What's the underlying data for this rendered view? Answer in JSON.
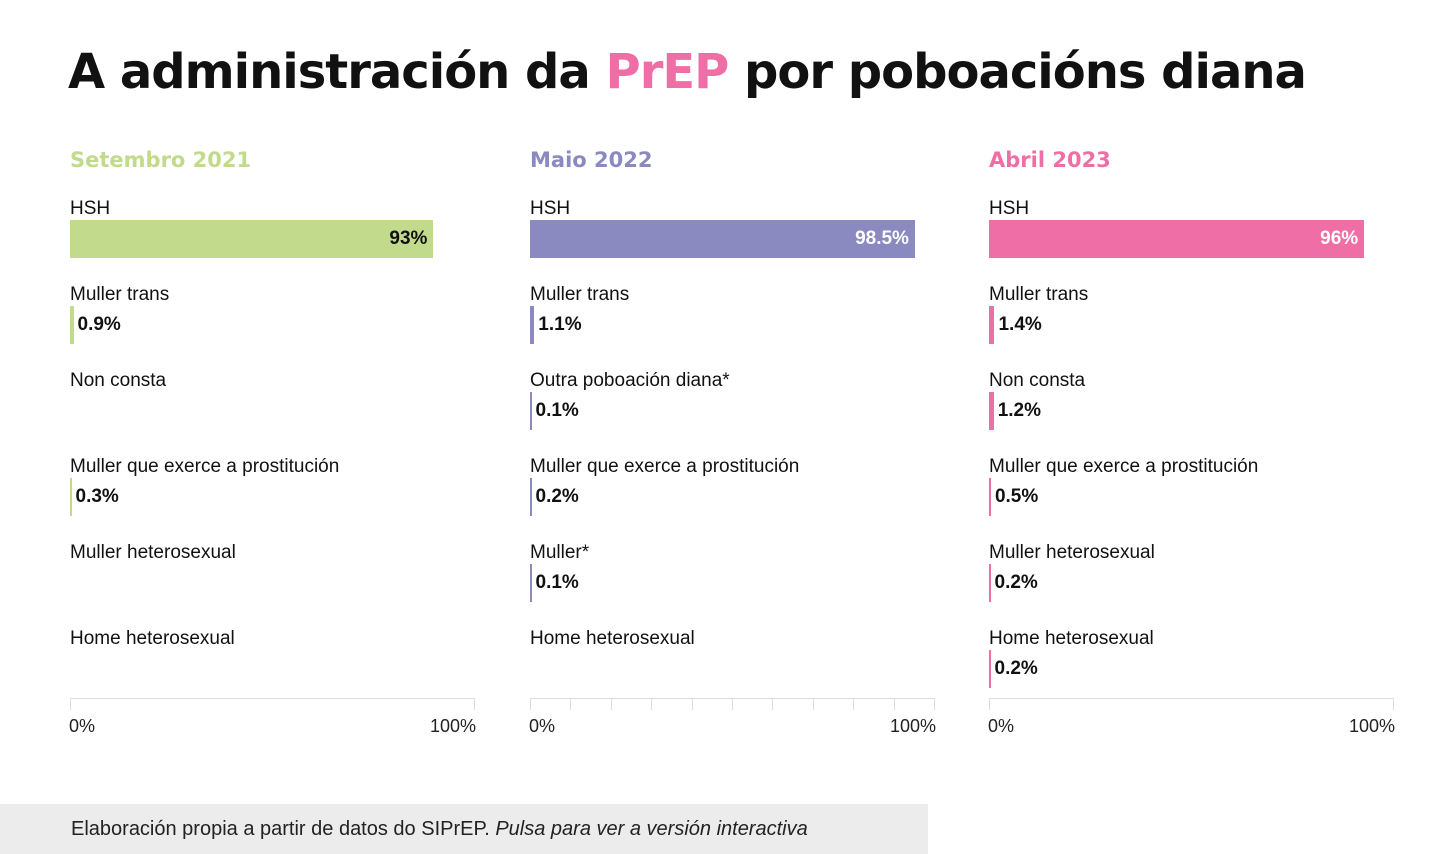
{
  "title": {
    "before": "A administración da ",
    "highlight": "PrEP",
    "after": " por poboacións diana"
  },
  "footer": {
    "source": "Elaboración propia a partir de datos do SIPrEP. ",
    "interactive": "Pulsa para ver a versión interactiva"
  },
  "chart_data": [
    {
      "type": "bar",
      "orientation": "horizontal",
      "title": "Setembro 2021",
      "color": "#c2da8c",
      "categories": [
        "HSH",
        "Muller trans",
        "Non consta",
        "Muller que exerce a prostitución",
        "Muller heterosexual",
        "Home heterosexual"
      ],
      "values": [
        93,
        0.9,
        null,
        0.3,
        null,
        null
      ],
      "labels": [
        "93%",
        "0.9%",
        "",
        "0.3%",
        "",
        ""
      ],
      "xlim": [
        0,
        100
      ],
      "ticks": [
        "0%",
        "100%"
      ],
      "minor_grid": false
    },
    {
      "type": "bar",
      "orientation": "horizontal",
      "title": "Maio 2022",
      "color": "#8a89c0",
      "categories": [
        "HSH",
        "Muller trans",
        "Outra poboación diana*",
        "Muller que exerce a prostitución",
        "Muller*",
        "Home heterosexual"
      ],
      "values": [
        98.5,
        1.1,
        0.1,
        0.2,
        0.1,
        null
      ],
      "labels": [
        "98.5%",
        "1.1%",
        "0.1%",
        "0.2%",
        "0.1%",
        ""
      ],
      "xlim": [
        0,
        100
      ],
      "ticks": [
        "0%",
        "100%"
      ],
      "minor_grid": true
    },
    {
      "type": "bar",
      "orientation": "horizontal",
      "title": "Abril 2023",
      "color": "#ee6ea5",
      "categories": [
        "HSH",
        "Muller trans",
        "Non consta",
        "Muller que exerce a prostitución",
        "Muller heterosexual",
        "Home heterosexual"
      ],
      "values": [
        96,
        1.4,
        1.2,
        0.5,
        0.2,
        0.2
      ],
      "labels": [
        "96%",
        "1.4%",
        "1.2%",
        "0.5%",
        "0.2%",
        "0.2%"
      ],
      "xlim": [
        0,
        100
      ],
      "ticks": [
        "0%",
        "100%"
      ],
      "minor_grid": false
    }
  ]
}
